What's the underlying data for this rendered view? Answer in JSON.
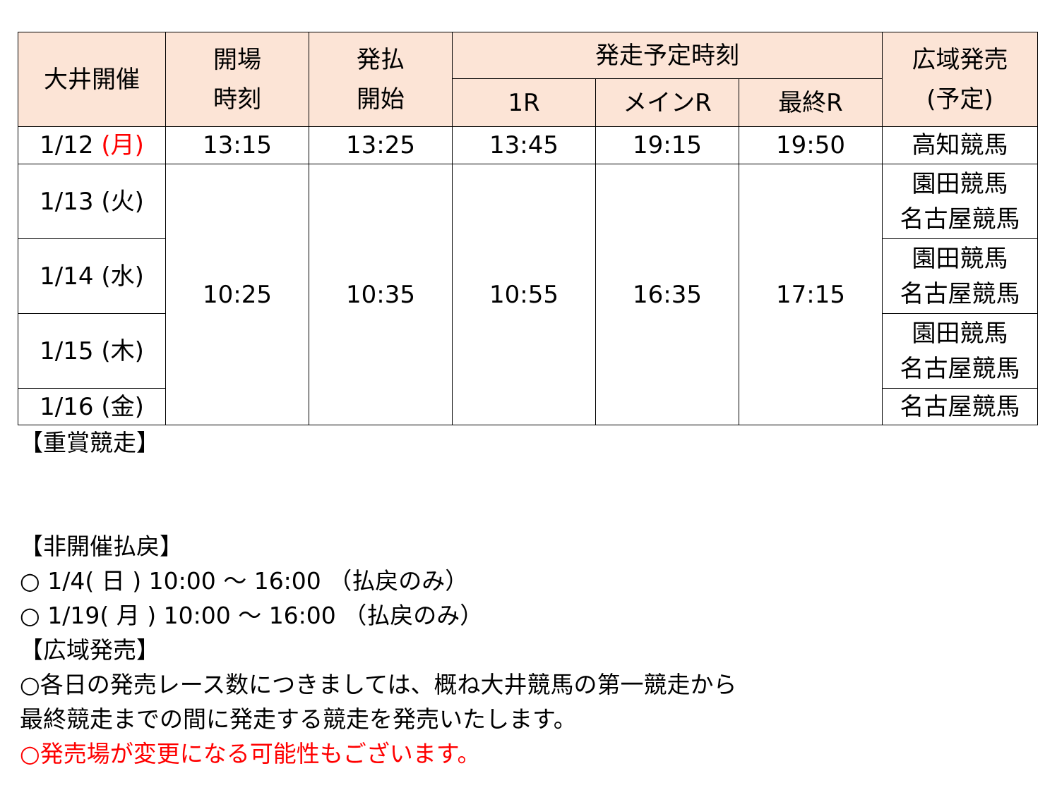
{
  "header": {
    "venue": "大井開催",
    "open_l1": "開場",
    "open_l2": "時刻",
    "sale_l1": "発払",
    "sale_l2": "開始",
    "start": "発走予定時刻",
    "r1": "1R",
    "main": "メインR",
    "last": "最終R",
    "wide_l1": "広域発売",
    "wide_l2": "(予定)"
  },
  "rows": [
    {
      "date": "1/12",
      "dow": "(月)",
      "open": "13:15",
      "sale": "13:25",
      "r1": "13:45",
      "main": "19:15",
      "last": "19:50",
      "wide": [
        "高知競馬"
      ]
    },
    {
      "date": "1/13",
      "dow": "(火)",
      "wide": [
        "園田競馬",
        "名古屋競馬"
      ]
    },
    {
      "date": "1/14",
      "dow": "(水)",
      "wide": [
        "園田競馬",
        "名古屋競馬"
      ]
    },
    {
      "date": "1/15",
      "dow": "(木)",
      "wide": [
        "園田競馬",
        "名古屋競馬"
      ]
    },
    {
      "date": "1/16",
      "dow": "(金)",
      "wide": [
        "名古屋競馬"
      ]
    }
  ],
  "merged": {
    "open": "10:25",
    "sale": "10:35",
    "r1": "10:55",
    "main": "16:35",
    "last": "17:15"
  },
  "notes": {
    "grade": "【重賞競走】",
    "refund": "【非開催払戻】",
    "refund1": "○ 1/4( 日 ) 10:00 ～ 16:00 （払戻のみ）",
    "refund2": "○ 1/19( 月 ) 10:00 ～ 16:00 （払戻のみ）",
    "wide": "【広域発売】",
    "wide1": "○各日の発売レース数につきましては、概ね大井競馬の第一競走から",
    "wide2": "最終競走までの間に発走する競走を発売いたします。",
    "wide3": "○発売場が変更になる可能性もございます。"
  },
  "colors": {
    "header_bg": "#fce4d6",
    "red": "#ff0000"
  }
}
